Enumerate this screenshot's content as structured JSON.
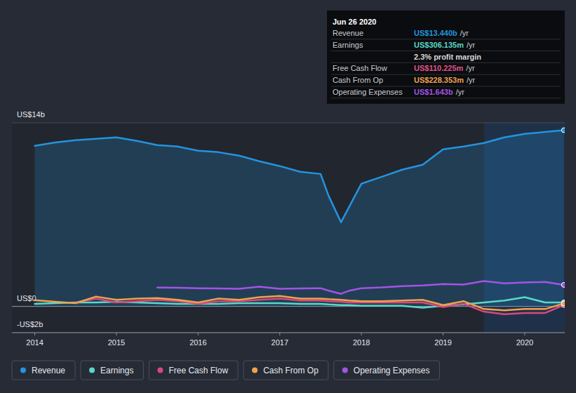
{
  "chart_data": {
    "type": "line",
    "x": [
      2014,
      2014.25,
      2014.5,
      2014.75,
      2015,
      2015.25,
      2015.5,
      2015.75,
      2016,
      2016.25,
      2016.5,
      2016.75,
      2017,
      2017.25,
      2017.5,
      2017.6,
      2017.75,
      2017.85,
      2018,
      2018.25,
      2018.5,
      2018.75,
      2019,
      2019.25,
      2019.5,
      2019.75,
      2020,
      2020.25,
      2020.48
    ],
    "xlim": [
      2013.72,
      2020.49
    ],
    "xticks": [
      2014,
      2015,
      2016,
      2017,
      2018,
      2019,
      2020
    ],
    "ylim": [
      -2,
      14
    ],
    "yticks": [
      {
        "value": -2,
        "label": "-US$2b"
      },
      {
        "value": 0,
        "label": "US$0"
      },
      {
        "value": 14,
        "label": "US$14b"
      }
    ],
    "legend": "bottom-left",
    "series": [
      {
        "name": "Revenue",
        "color": "#2394df",
        "type": "area",
        "marker": "end",
        "values": [
          12.25,
          12.5,
          12.67,
          12.78,
          12.89,
          12.62,
          12.3,
          12.19,
          11.87,
          11.76,
          11.5,
          11.07,
          10.7,
          10.27,
          10.1,
          8.4,
          6.42,
          7.6,
          9.36,
          9.89,
          10.43,
          10.8,
          11.98,
          12.19,
          12.46,
          12.89,
          13.16,
          13.3,
          13.44
        ]
      },
      {
        "name": "Earnings",
        "color": "#5ad8c5",
        "type": "line",
        "marker": "end",
        "values": [
          0.2,
          0.25,
          0.3,
          0.3,
          0.35,
          0.3,
          0.25,
          0.2,
          0.2,
          0.2,
          0.25,
          0.25,
          0.25,
          0.2,
          0.2,
          0.15,
          0.1,
          0.1,
          0.05,
          0.05,
          0.05,
          -0.1,
          0.05,
          0.15,
          0.3,
          0.45,
          0.7,
          0.3,
          0.306
        ]
      },
      {
        "name": "Free Cash Flow",
        "color": "#d9487e",
        "type": "line",
        "marker": "end",
        "values": [
          null,
          null,
          0.3,
          0.6,
          0.3,
          0.4,
          0.5,
          0.4,
          0.2,
          0.4,
          0.4,
          0.5,
          0.6,
          0.45,
          0.45,
          0.4,
          0.35,
          0.3,
          0.3,
          0.3,
          0.3,
          0.3,
          -0.05,
          0.2,
          -0.4,
          -0.6,
          -0.5,
          -0.5,
          0.11
        ]
      },
      {
        "name": "Cash From Op",
        "color": "#f0a24d",
        "type": "line",
        "marker": "end",
        "values": [
          0.48,
          0.35,
          0.25,
          0.75,
          0.5,
          0.6,
          0.64,
          0.5,
          0.3,
          0.6,
          0.5,
          0.7,
          0.8,
          0.6,
          0.6,
          0.55,
          0.5,
          0.45,
          0.4,
          0.4,
          0.45,
          0.5,
          0.1,
          0.4,
          -0.2,
          -0.3,
          -0.2,
          -0.2,
          0.228
        ]
      },
      {
        "name": "Operating Expenses",
        "color": "#a354e6",
        "type": "line",
        "marker": "end",
        "values": [
          null,
          null,
          null,
          null,
          null,
          null,
          1.44,
          1.42,
          1.39,
          1.37,
          1.34,
          1.5,
          1.34,
          1.37,
          1.39,
          1.2,
          0.96,
          1.2,
          1.39,
          1.45,
          1.55,
          1.6,
          1.71,
          1.66,
          1.93,
          1.76,
          1.82,
          1.87,
          1.643
        ]
      }
    ],
    "annotation": {
      "title": "Jun 26 2020",
      "rows": [
        {
          "label": "Revenue",
          "value": "US$13.440b",
          "unit": "/yr",
          "color": "#2394df"
        },
        {
          "label": "Earnings",
          "value": "US$306.135m",
          "unit": "/yr",
          "color": "#5ad8c5"
        },
        {
          "value": "2.3% profit margin",
          "color": "#d8d8d8"
        },
        {
          "label": "Free Cash Flow",
          "value": "US$110.225m",
          "unit": "/yr",
          "color": "#e0528a"
        },
        {
          "label": "Cash From Op",
          "value": "US$228.353m",
          "unit": "/yr",
          "color": "#f0a24d"
        },
        {
          "label": "Operating Expenses",
          "value": "US$1.643b",
          "unit": "/yr",
          "color": "#a354e6"
        }
      ]
    }
  }
}
